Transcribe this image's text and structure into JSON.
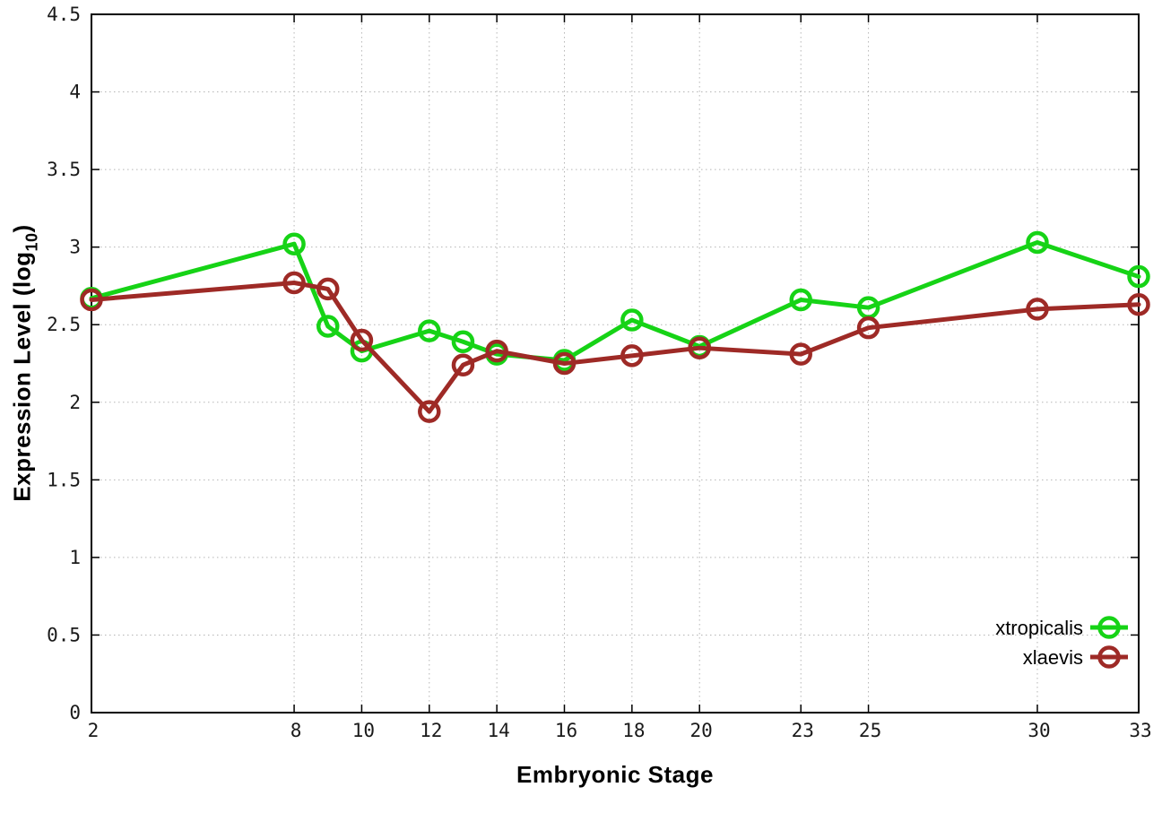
{
  "chart_data": {
    "type": "line",
    "title": "",
    "xlabel": "Embryonic Stage",
    "ylabel": "Expression Level (log10)",
    "ylabel_parts": {
      "pre": "Expression Level (log",
      "sub": "10",
      "post": ")"
    },
    "x": [
      2,
      8,
      9,
      10,
      12,
      13,
      14,
      16,
      18,
      20,
      23,
      25,
      30,
      33
    ],
    "series": [
      {
        "name": "xtropicalis",
        "color": "#16d316",
        "values": [
          2.67,
          3.02,
          2.49,
          2.33,
          2.46,
          2.39,
          2.31,
          2.27,
          2.53,
          2.36,
          2.66,
          2.61,
          3.03,
          2.81
        ]
      },
      {
        "name": "xlaevis",
        "color": "#9e2a26",
        "values": [
          2.66,
          2.77,
          2.73,
          2.4,
          1.94,
          2.24,
          2.33,
          2.25,
          2.3,
          2.35,
          2.31,
          2.48,
          2.6,
          2.63
        ]
      }
    ],
    "xticks": [
      2,
      8,
      10,
      12,
      14,
      16,
      18,
      20,
      23,
      25,
      30,
      33
    ],
    "xtick_labels": [
      "2",
      "8",
      "10",
      "12",
      "14",
      "16",
      "18",
      "20",
      "23",
      "25",
      "30",
      "33"
    ],
    "yticks": [
      0,
      0.5,
      1,
      1.5,
      2,
      2.5,
      3,
      3.5,
      4,
      4.5
    ],
    "ytick_labels": [
      "0",
      "0.5",
      "1",
      "1.5",
      "2",
      "2.5",
      "3",
      "3.5",
      "4",
      "4.5"
    ],
    "xlim": [
      2,
      33
    ],
    "ylim": [
      0,
      4.5
    ],
    "grid": true,
    "legend_position": "inside-bottom-right",
    "legend_entries": [
      "xtropicalis",
      "xlaevis"
    ],
    "axis_color": "#000000",
    "grid_color": "#b5b5b5",
    "background_color": "#ffffff"
  }
}
